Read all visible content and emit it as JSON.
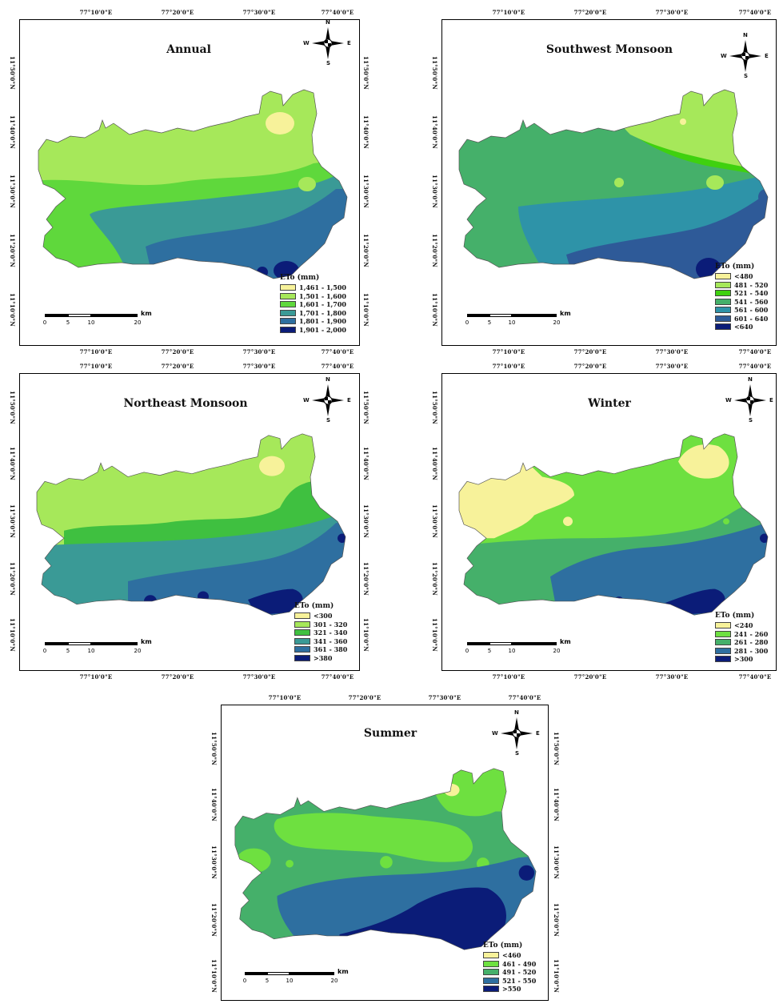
{
  "coords": {
    "lon": [
      "77°10'0\"E",
      "77°20'0\"E",
      "77°30'0\"E",
      "77°40'0\"E"
    ],
    "lat": [
      "11°50'0\"N",
      "11°40'0\"N",
      "11°30'0\"N",
      "11°20'0\"N",
      "11°10'0\"N"
    ]
  },
  "compass": {
    "n": "N",
    "s": "S",
    "e": "E",
    "w": "W"
  },
  "scale": {
    "labels": [
      "0",
      "5",
      "10",
      "20"
    ],
    "unit": "km"
  },
  "colors": {
    "pale_yellow": "#f7f29a",
    "light_green": "#a6e85a",
    "green": "#5fd83c",
    "bright_green": "#3fd10f",
    "sea_green": "#45b06a",
    "teal": "#3a9a96",
    "steel_blue": "#2e6fa0",
    "navy": "#0b1c78"
  },
  "panels": [
    {
      "title": "Annual",
      "legend_title": "ETo (mm)",
      "classes": [
        "1,461 - 1,500",
        "1,501 - 1,600",
        "1,601 - 1,700",
        "1,701 - 1,800",
        "1,801 - 1,900",
        "1,901 - 2,000"
      ],
      "swatches": [
        "#f7f29a",
        "#a6e85a",
        "#5fd83c",
        "#3fa86a",
        "#2e6fa0",
        "#0b1c78"
      ]
    },
    {
      "title": "Southwest Monsoon",
      "legend_title": "ETo (mm)",
      "classes": [
        "<480",
        "481 - 520",
        "521 - 540",
        "541 - 560",
        "561 - 600",
        "601 - 640",
        "<640"
      ],
      "swatches": [
        "#f7f29a",
        "#a6e85a",
        "#3fd10f",
        "#45b06a",
        "#2e93a8",
        "#2e5a98",
        "#0b1c78"
      ]
    },
    {
      "title": "Northeast Monsoon",
      "legend_title": "ETo (mm)",
      "classes": [
        "<300",
        "301 - 320",
        "321 - 340",
        "341 - 360",
        "361 - 380",
        ">380"
      ],
      "swatches": [
        "#f7f29a",
        "#a6e85a",
        "#3fc040",
        "#3a9a96",
        "#2e6fa0",
        "#0b1c78"
      ]
    },
    {
      "title": "Winter",
      "legend_title": "ETo (mm)",
      "classes": [
        "<240",
        "241 - 260",
        "261 - 280",
        "281 - 300",
        ">300"
      ],
      "swatches": [
        "#f7f29a",
        "#6ee040",
        "#45b06a",
        "#2e6fa0",
        "#0b1c78"
      ]
    },
    {
      "title": "Summer",
      "legend_title": "ETo (mm)",
      "classes": [
        "<460",
        "461 - 490",
        "491 - 520",
        "521 - 550",
        ">550"
      ],
      "swatches": [
        "#f7f29a",
        "#6ee040",
        "#45b06a",
        "#2e6fa0",
        "#0b1c78"
      ]
    }
  ]
}
